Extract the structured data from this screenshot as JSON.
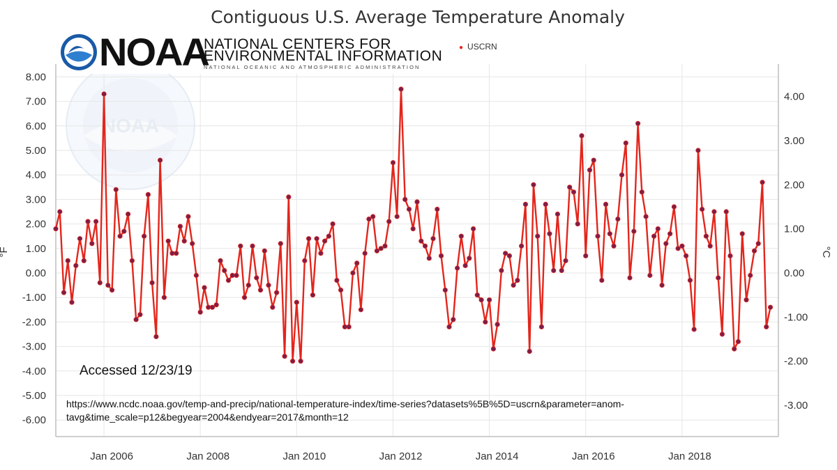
{
  "chart_data": {
    "type": "line",
    "title": "Contiguous U.S. Average Temperature Anomaly",
    "ylabel_left": "°F",
    "ylabel_right": "°C",
    "y_left_ticks": [
      "8.00",
      "7.00",
      "6.00",
      "5.00",
      "4.00",
      "3.00",
      "2.00",
      "1.00",
      "0.00",
      "-1.00",
      "-2.00",
      "-3.00",
      "-4.00",
      "-5.00",
      "-6.00"
    ],
    "y_left_values": [
      8,
      7,
      6,
      5,
      4,
      3,
      2,
      1,
      0,
      -1,
      -2,
      -3,
      -4,
      -5,
      -6
    ],
    "y_right_ticks": [
      "4.00",
      "3.00",
      "2.00",
      "1.00",
      "0.00",
      "-1.00",
      "-2.00",
      "-3.00"
    ],
    "y_right_values": [
      4,
      3,
      2,
      1,
      0,
      -1,
      -2,
      -3
    ],
    "ylim_left": [
      -6.75,
      8.15
    ],
    "x_ticks": [
      "Jan 2006",
      "Jan 2008",
      "Jan 2010",
      "Jan 2012",
      "Jan 2014",
      "Jan 2016",
      "Jan 2018"
    ],
    "x_tick_values": [
      2006,
      2008,
      2010,
      2012,
      2014,
      2016,
      2018
    ],
    "xlim": [
      2005.0,
      2020.0
    ],
    "series": [
      {
        "name": "USCRN",
        "color": "#e3261c",
        "start": 2005.0,
        "step_months": 1,
        "values": [
          1.8,
          2.5,
          -0.8,
          0.5,
          -1.2,
          0.3,
          1.4,
          0.5,
          2.1,
          1.2,
          2.1,
          -0.4,
          7.3,
          -0.5,
          -0.7,
          3.4,
          1.5,
          1.7,
          2.4,
          0.5,
          -1.9,
          -1.7,
          1.5,
          3.2,
          -0.4,
          -2.6,
          4.6,
          -1.0,
          1.3,
          0.8,
          0.8,
          1.9,
          1.3,
          2.3,
          1.2,
          -0.1,
          -1.6,
          -0.6,
          -1.4,
          -1.4,
          -1.3,
          0.5,
          0.1,
          -0.3,
          -0.1,
          -0.1,
          1.1,
          -1.0,
          -0.5,
          1.1,
          -0.2,
          -0.7,
          0.9,
          -0.5,
          -1.4,
          -0.8,
          1.2,
          -3.4,
          3.1,
          -3.6,
          -1.2,
          -3.6,
          0.5,
          1.4,
          -0.9,
          1.4,
          0.8,
          1.3,
          1.5,
          2.0,
          -0.3,
          -0.7,
          -2.2,
          -2.2,
          0.0,
          0.4,
          -1.5,
          0.8,
          2.2,
          2.3,
          0.9,
          1.0,
          1.1,
          2.1,
          4.5,
          2.3,
          7.5,
          3.0,
          2.6,
          1.8,
          2.9,
          1.3,
          1.1,
          0.6,
          1.4,
          2.6,
          0.7,
          -0.7,
          -2.2,
          -1.9,
          0.2,
          1.5,
          0.3,
          0.6,
          1.8,
          -0.9,
          -1.1,
          -2.0,
          -1.1,
          -3.1,
          -2.1,
          0.1,
          0.8,
          0.7,
          -0.5,
          -0.3,
          1.1,
          2.8,
          -3.2,
          3.6,
          1.5,
          -2.2,
          2.8,
          1.6,
          0.1,
          2.4,
          0.1,
          0.5,
          3.5,
          3.3,
          2.0,
          5.6,
          0.7,
          4.2,
          4.6,
          1.5,
          -0.3,
          2.8,
          1.6,
          1.1,
          2.2,
          4.0,
          5.3,
          -0.2,
          1.7,
          6.1,
          3.3,
          2.3,
          -0.1,
          1.5,
          1.8,
          -0.5,
          1.2,
          1.6,
          2.7,
          1.0,
          1.1,
          0.7,
          -0.3,
          -2.3,
          5.0,
          2.6,
          1.5,
          1.1,
          2.5,
          -0.2,
          -2.5,
          2.5,
          0.7,
          -3.1,
          -2.8,
          1.6,
          -1.1,
          -0.1,
          0.9,
          1.2,
          3.7,
          -2.2,
          -1.4
        ]
      }
    ]
  },
  "logo": {
    "word": "NOAA",
    "line1": "NATIONAL CENTERS FOR",
    "line2": "ENVIRONMENTAL INFORMATION",
    "line3": "NATIONAL OCEANIC AND ATMOSPHERIC ADMINISTRATION"
  },
  "legend": {
    "label": "USCRN"
  },
  "annotations": {
    "accessed": "Accessed 12/23/19",
    "url": "https://www.ncdc.noaa.gov/temp-and-precip/national-temperature-index/time-series?datasets%5B%5D=uscrn&parameter=anom-tavg&time_scale=p12&begyear=2004&endyear=2017&month=12"
  },
  "colors": {
    "line": "#e3261c",
    "marker": "#7a1f4a",
    "grid": "#e6e6e6",
    "axis": "#bfbfbf",
    "watermark": "#dfe8f3"
  }
}
